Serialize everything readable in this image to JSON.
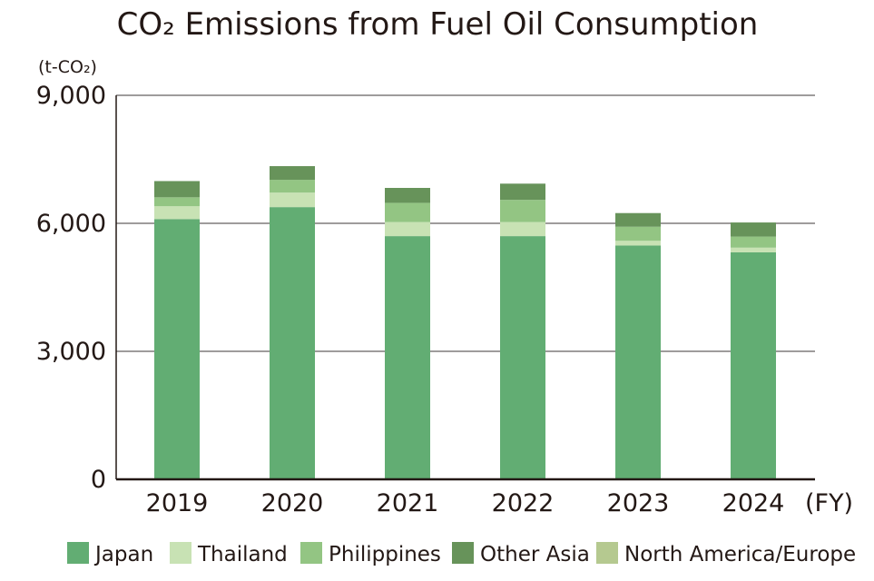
{
  "chart_data": {
    "type": "bar",
    "stacked": true,
    "title": "CO₂ Emissions from Fuel Oil Consumption",
    "ylabel": "(t-CO₂)",
    "xlabel": "(FY)",
    "categories": [
      "2019",
      "2020",
      "2021",
      "2022",
      "2023",
      "2024"
    ],
    "ylim": [
      0,
      9000
    ],
    "yticks": [
      0,
      3000,
      6000,
      9000
    ],
    "ytick_labels": [
      "0",
      "3,000",
      "6,000",
      "9,000"
    ],
    "grid": "horizontal",
    "legend_position": "bottom",
    "series": [
      {
        "name": "Japan",
        "color": "#62ad73",
        "values": [
          6100,
          6380,
          5700,
          5700,
          5480,
          5320
        ]
      },
      {
        "name": "Thailand",
        "color": "#c8e2b4",
        "values": [
          300,
          340,
          330,
          330,
          110,
          110
        ]
      },
      {
        "name": "Philippines",
        "color": "#93c583",
        "values": [
          210,
          300,
          450,
          520,
          330,
          260
        ]
      },
      {
        "name": "Other Asia",
        "color": "#67935a",
        "values": [
          380,
          320,
          350,
          380,
          320,
          330
        ]
      },
      {
        "name": "North America/Europe",
        "color": "#b5c990",
        "values": [
          0,
          0,
          0,
          0,
          0,
          0
        ]
      }
    ]
  }
}
